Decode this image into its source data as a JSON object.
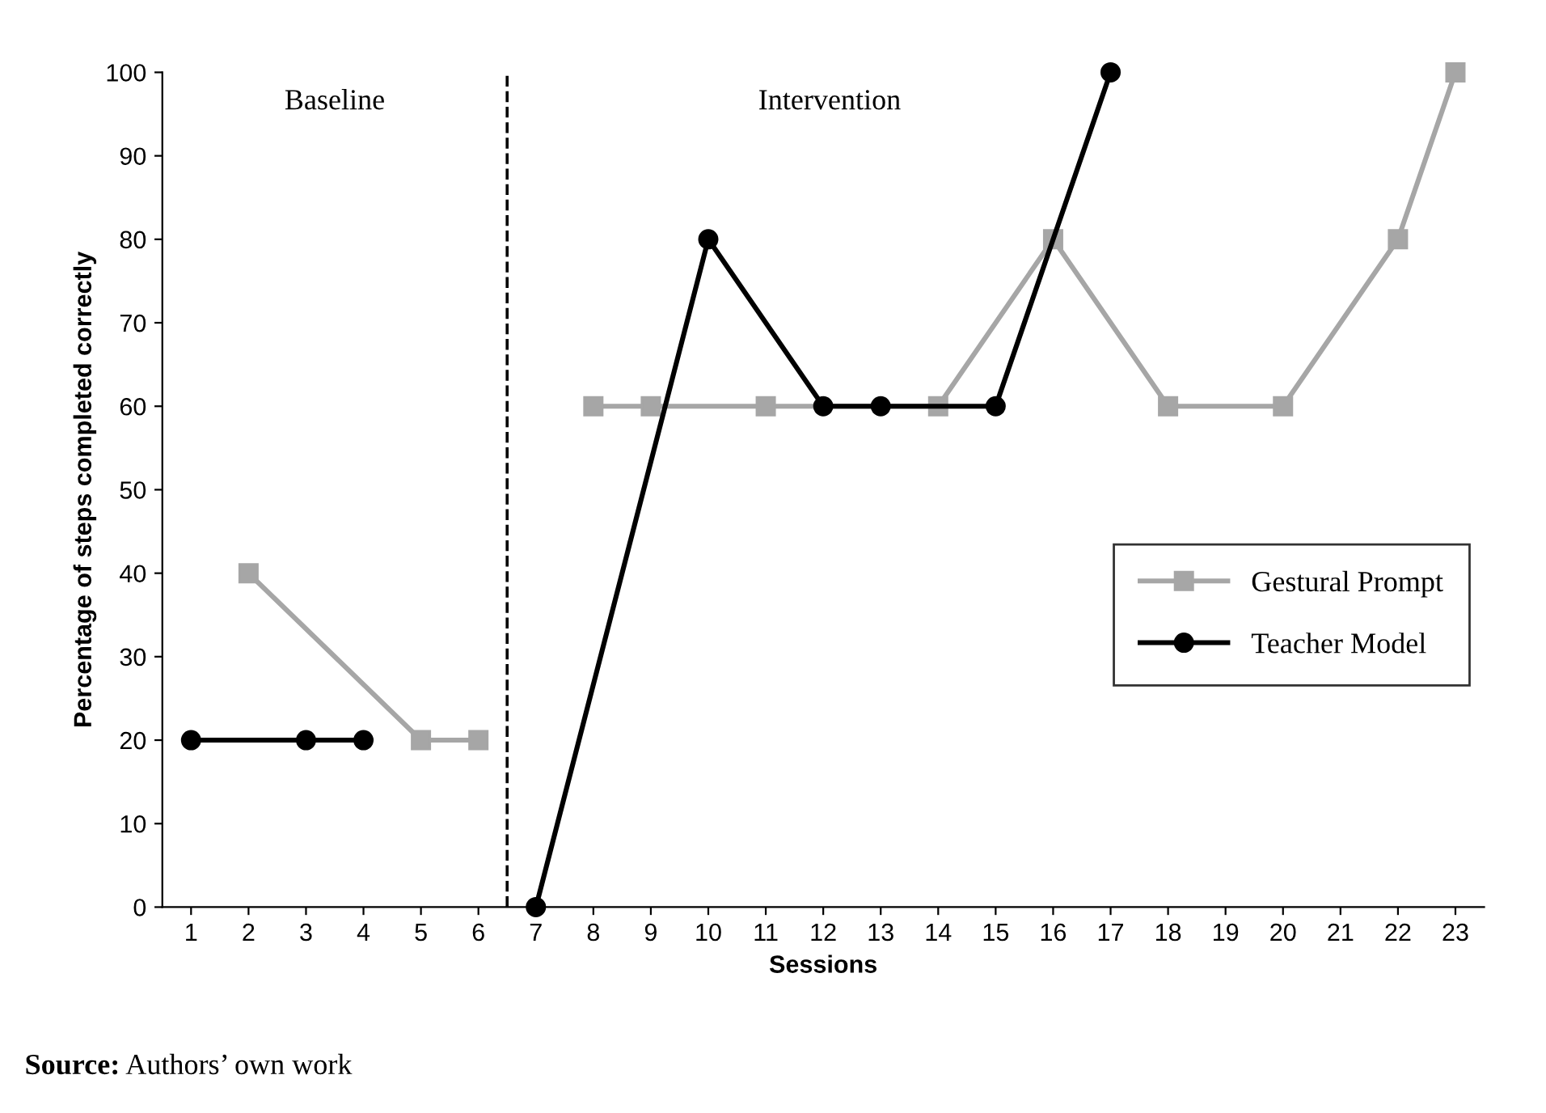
{
  "chart_data": {
    "type": "line",
    "xlabel": "Sessions",
    "ylabel": "Percentage of steps completed correctly",
    "xlim": [
      0.5,
      23.5
    ],
    "xticks": [
      1,
      2,
      3,
      4,
      5,
      6,
      7,
      8,
      9,
      10,
      11,
      12,
      13,
      14,
      15,
      16,
      17,
      18,
      19,
      20,
      21,
      22,
      23
    ],
    "ylim": [
      0,
      100
    ],
    "yticks": [
      0,
      10,
      20,
      30,
      40,
      50,
      60,
      70,
      80,
      90,
      100
    ],
    "series": [
      {
        "name": "Gestural Prompt",
        "color": "#a6a6a6",
        "marker": "square",
        "x": [
          2,
          5,
          6,
          8,
          9,
          11,
          14,
          16,
          18,
          20,
          22,
          23
        ],
        "values": [
          40,
          20,
          20,
          60,
          60,
          60,
          60,
          80,
          60,
          60,
          80,
          100
        ]
      },
      {
        "name": "Teacher Model",
        "color": "#000000",
        "marker": "circle",
        "x": [
          1,
          3,
          4,
          7,
          10,
          12,
          13,
          15,
          17
        ],
        "values": [
          20,
          20,
          20,
          0,
          80,
          60,
          60,
          60,
          100
        ]
      }
    ],
    "ref_lines": [
      {
        "axis": "x",
        "value": 6.5,
        "color": "#000000",
        "line_style": "dashed"
      }
    ],
    "annotations": [
      "Baseline",
      "Intervention",
      "Source: Authors’ own work"
    ],
    "legend": "right",
    "grid": false,
    "line_style": "solid"
  }
}
